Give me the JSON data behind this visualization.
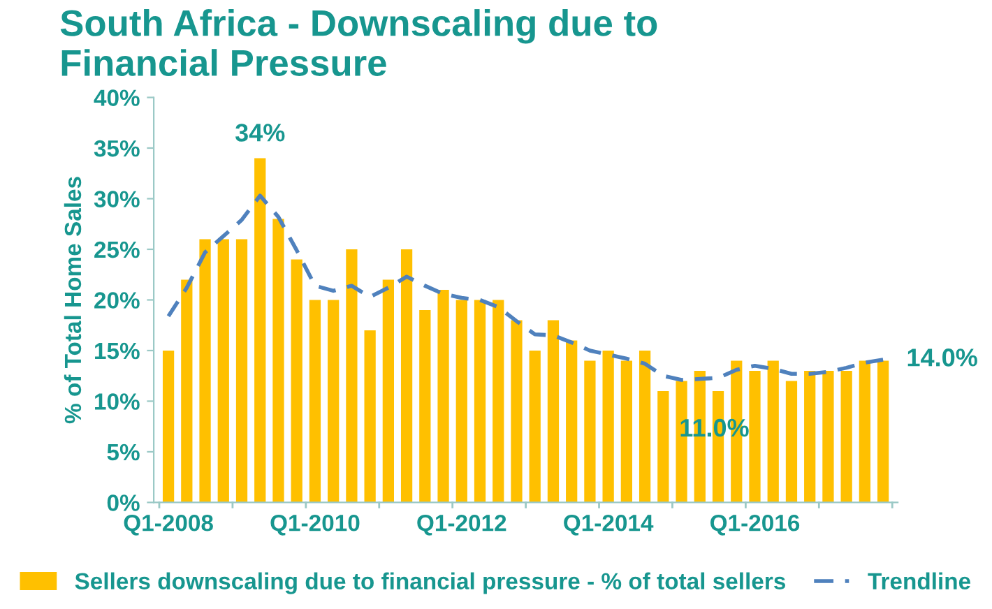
{
  "chart_data": {
    "type": "bar",
    "title": "South Africa - Downscaling due to\nFinancial Pressure",
    "ylabel": "% of Total Home Sales",
    "categories": [
      "Q1-2008",
      null,
      null,
      null,
      null,
      null,
      null,
      null,
      "Q1-2010",
      null,
      null,
      null,
      null,
      null,
      null,
      null,
      "Q1-2012",
      null,
      null,
      null,
      null,
      null,
      null,
      null,
      "Q1-2014",
      null,
      null,
      null,
      null,
      null,
      null,
      null,
      "Q1-2016",
      null,
      null,
      null,
      null,
      null,
      null,
      null
    ],
    "series": [
      {
        "name": "Sellers downscaling due to financial pressure - % of total sellers",
        "color": "#ffc000",
        "values": [
          15,
          22,
          26,
          26,
          26,
          34,
          28,
          24,
          20,
          20,
          25,
          17,
          22,
          25,
          19,
          21,
          20,
          20,
          20,
          18,
          15,
          18,
          16,
          14,
          15,
          14,
          15,
          11,
          12,
          13,
          11,
          14,
          13,
          14,
          12,
          13,
          13,
          13,
          14,
          14
        ]
      },
      {
        "name": "Trendline",
        "type": "line",
        "color": "#4f81bd",
        "line_style": "dashed",
        "values": [
          18.4,
          21.2,
          24.7,
          26.3,
          27.9,
          30.3,
          28.2,
          24.9,
          21.4,
          20.9,
          21.4,
          20.3,
          21.2,
          22.3,
          21.4,
          20.6,
          20.2,
          20.0,
          19.3,
          17.9,
          16.6,
          16.5,
          15.8,
          15.0,
          14.6,
          14.2,
          13.7,
          12.5,
          12.1,
          12.2,
          12.3,
          13.1,
          13.5,
          13.2,
          12.7,
          12.7,
          12.9,
          13.3,
          13.8,
          14.1
        ]
      }
    ],
    "ylim": [
      0,
      40
    ],
    "yticks": [
      {
        "value": 0,
        "label": "0%"
      },
      {
        "value": 5,
        "label": "5%"
      },
      {
        "value": 10,
        "label": "10%"
      },
      {
        "value": 15,
        "label": "15%"
      },
      {
        "value": 20,
        "label": "20%"
      },
      {
        "value": 25,
        "label": "25%"
      },
      {
        "value": 30,
        "label": "30%"
      },
      {
        "value": 35,
        "label": "35%"
      },
      {
        "value": 40,
        "label": "40%"
      }
    ],
    "annotations": [
      {
        "text": "34%",
        "y": 34
      },
      {
        "text": "11.0%",
        "y": 11
      },
      "14.0%"
    ],
    "grid": false,
    "legend": "bottom"
  }
}
